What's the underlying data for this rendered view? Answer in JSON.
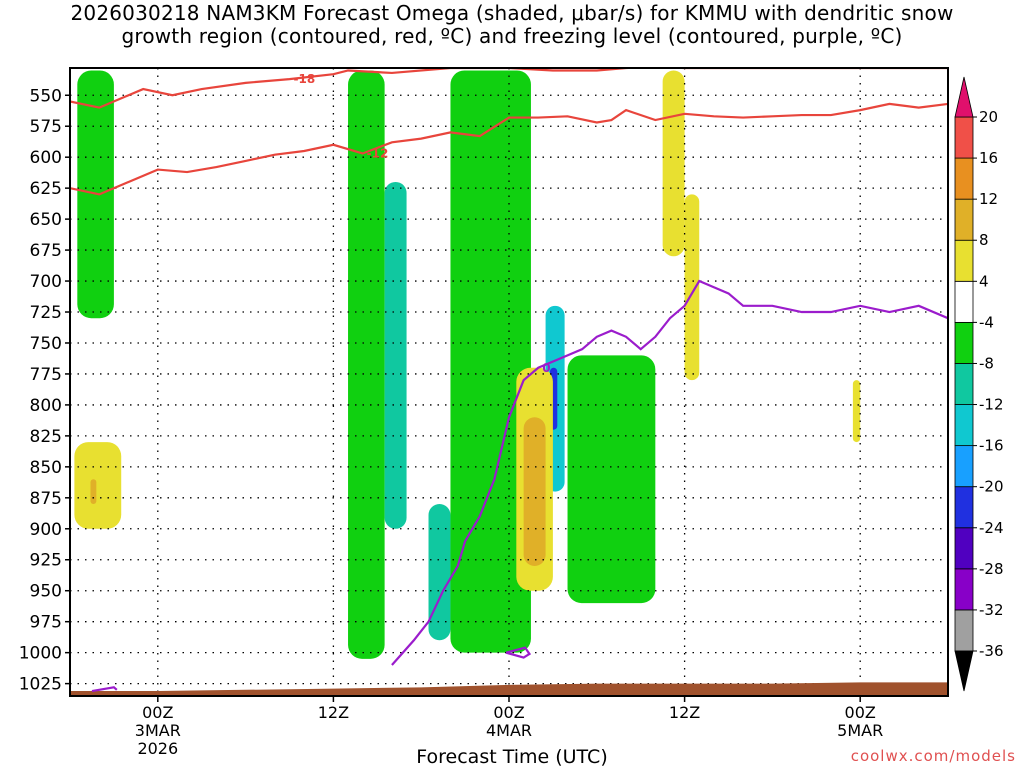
{
  "title": {
    "line1": "2026030218 NAM3KM Forecast Omega (shaded, μbar/s) for KMMU with dendritic snow",
    "line2": "growth region (contoured, red, ºC) and freezing level (contoured, purple, ºC)"
  },
  "credit": "coolwx.com/models",
  "chart_data": {
    "type": "heatmap",
    "title": "2026030218 NAM3KM Forecast Omega (shaded, μbar/s) for KMMU with dendritic snow growth region (contoured, red, ºC) and freezing level (contoured, purple, ºC)",
    "xlabel": "Forecast Time (UTC)",
    "ylabel": "",
    "x_units": "hours since 2026-03-02 18Z",
    "xlim": [
      0,
      60
    ],
    "x_ticks": [
      {
        "x": 6,
        "lines": [
          "00Z",
          "3MAR",
          "2026"
        ]
      },
      {
        "x": 18,
        "lines": [
          "12Z"
        ]
      },
      {
        "x": 30,
        "lines": [
          "00Z",
          "4MAR"
        ]
      },
      {
        "x": 42,
        "lines": [
          "12Z"
        ]
      },
      {
        "x": 54,
        "lines": [
          "00Z",
          "5MAR"
        ]
      }
    ],
    "y_units": "mb",
    "ylim": [
      1035,
      528
    ],
    "y_ticks": [
      550,
      575,
      600,
      625,
      650,
      675,
      700,
      725,
      750,
      775,
      800,
      825,
      850,
      875,
      900,
      925,
      950,
      975,
      1000,
      1025
    ],
    "grid": true,
    "colorbar": {
      "levels": [
        -36,
        -32,
        -28,
        -24,
        -20,
        -16,
        -12,
        -8,
        -4,
        4,
        8,
        12,
        16,
        20
      ],
      "colors": [
        "#a0a0a0",
        "#8800c8",
        "#5000c0",
        "#2030e0",
        "#18a0ff",
        "#10c8d0",
        "#10c8a0",
        "#10d010",
        "#ffffff",
        "#e8e030",
        "#e0b028",
        "#e89020",
        "#f05048"
      ],
      "min_label": "-36",
      "max_label": "20"
    },
    "omega_regions": [
      {
        "value_range": [
          -8,
          -4
        ],
        "approx_x": [
          0.5,
          3
        ],
        "approx_p": [
          530,
          730
        ]
      },
      {
        "value_range": [
          -8,
          -4
        ],
        "approx_x": [
          19,
          21.5
        ],
        "approx_p": [
          530,
          1005
        ]
      },
      {
        "value_range": [
          -12,
          -8
        ],
        "approx_x": [
          21.5,
          23
        ],
        "approx_p": [
          620,
          900
        ]
      },
      {
        "value_range": [
          -12,
          -8
        ],
        "approx_x": [
          24.5,
          26
        ],
        "approx_p": [
          880,
          990
        ]
      },
      {
        "value_range": [
          -8,
          -4
        ],
        "approx_x": [
          26,
          31.5
        ],
        "approx_p": [
          530,
          1000
        ]
      },
      {
        "value_range": [
          -16,
          -12
        ],
        "approx_x": [
          32.5,
          33.8
        ],
        "approx_p": [
          720,
          870
        ]
      },
      {
        "value_range": [
          -24,
          -20
        ],
        "approx_x": [
          32.8,
          33.3
        ],
        "approx_p": [
          770,
          820
        ]
      },
      {
        "value_range": [
          -8,
          -4
        ],
        "approx_x": [
          34,
          40
        ],
        "approx_p": [
          760,
          960
        ]
      },
      {
        "value_range": [
          4,
          8
        ],
        "approx_x": [
          0.3,
          3.5
        ],
        "approx_p": [
          830,
          900
        ]
      },
      {
        "value_range": [
          8,
          12
        ],
        "approx_x": [
          1.4,
          1.8
        ],
        "approx_p": [
          860,
          880
        ]
      },
      {
        "value_range": [
          4,
          8
        ],
        "approx_x": [
          30.5,
          33
        ],
        "approx_p": [
          770,
          950
        ]
      },
      {
        "value_range": [
          8,
          12
        ],
        "approx_x": [
          31,
          32.5
        ],
        "approx_p": [
          810,
          930
        ]
      },
      {
        "value_range": [
          4,
          8
        ],
        "approx_x": [
          40.5,
          42
        ],
        "approx_p": [
          530,
          680
        ]
      },
      {
        "value_range": [
          4,
          8
        ],
        "approx_x": [
          42,
          43
        ],
        "approx_p": [
          630,
          780
        ]
      },
      {
        "value_range": [
          4,
          8
        ],
        "approx_x": [
          53.5,
          54
        ],
        "approx_p": [
          780,
          830
        ]
      }
    ],
    "dgz_contours": [
      {
        "level": -18,
        "label": "-18",
        "x": [
          0,
          2,
          4,
          5,
          7,
          9,
          12,
          15,
          18,
          19,
          22,
          26,
          30,
          33,
          36,
          38,
          40,
          42,
          46,
          50,
          54,
          58,
          60
        ],
        "p": [
          555,
          560,
          550,
          545,
          550,
          545,
          540,
          537,
          533,
          530,
          532,
          528,
          528,
          530,
          530,
          528,
          527,
          528,
          528,
          528,
          528,
          528,
          528
        ]
      },
      {
        "level": -12,
        "label": "-12",
        "x": [
          0,
          2,
          4,
          6,
          8,
          10,
          12,
          14,
          16,
          18,
          20,
          22,
          24,
          26,
          28,
          30,
          32,
          34,
          36,
          37,
          38,
          40,
          42,
          44,
          46,
          48,
          50,
          52,
          54,
          56,
          58,
          60
        ],
        "p": [
          625,
          630,
          620,
          610,
          612,
          608,
          603,
          598,
          595,
          590,
          597,
          588,
          585,
          580,
          583,
          568,
          568,
          567,
          572,
          570,
          562,
          570,
          565,
          567,
          568,
          567,
          566,
          566,
          562,
          557,
          560,
          557
        ]
      }
    ],
    "freezing_level": [
      {
        "level": 0,
        "label": "0",
        "x": [
          22,
          23.5,
          24.5,
          25.5,
          26.5,
          27,
          28,
          29,
          30,
          31,
          32,
          34,
          35,
          36,
          37,
          38,
          39,
          40,
          41,
          42,
          43,
          44,
          45,
          46,
          48,
          50,
          52,
          54,
          56,
          58,
          60
        ],
        "p": [
          1010,
          990,
          975,
          950,
          930,
          910,
          890,
          860,
          810,
          780,
          770,
          760,
          755,
          745,
          740,
          745,
          755,
          745,
          730,
          720,
          700,
          705,
          710,
          720,
          720,
          725,
          725,
          720,
          725,
          720,
          730
        ]
      },
      {
        "level": 0,
        "label": "",
        "x": [
          29.8,
          31.1,
          31.4,
          31.0,
          29.8
        ],
        "p": [
          1000,
          996,
          1001,
          1004,
          1000
        ]
      },
      {
        "level": 0,
        "label": "",
        "x": [
          1.5,
          3.0,
          3.2
        ],
        "p": [
          1031,
          1028,
          1030
        ]
      }
    ],
    "terrain": {
      "description": "surface terrain (brown) at bottom",
      "x": [
        0,
        6,
        12,
        18,
        24,
        30,
        36,
        42,
        48,
        54,
        60
      ],
      "p": [
        1031,
        1031,
        1030,
        1029,
        1028,
        1026,
        1025,
        1025,
        1025,
        1024,
        1024
      ]
    }
  }
}
